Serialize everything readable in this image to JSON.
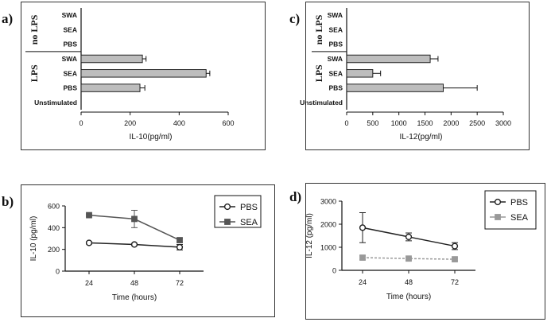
{
  "labels": {
    "a": "a)",
    "b": "b)",
    "c": "c)",
    "d": "d)"
  },
  "chart_data": [
    {
      "id": "a",
      "type": "bar",
      "orientation": "horizontal",
      "categories": [
        "SWA",
        "SEA",
        "PBS",
        "SWA",
        "SEA",
        "PBS",
        "Unstimulated"
      ],
      "groups": [
        {
          "label": "no LPS",
          "rows": [
            0,
            1,
            2
          ]
        },
        {
          "label": "LPS",
          "rows": [
            3,
            4,
            5
          ]
        }
      ],
      "values": [
        0,
        0,
        0,
        250,
        510,
        240,
        0
      ],
      "errors": [
        0,
        0,
        0,
        15,
        15,
        20,
        0
      ],
      "xlim": [
        0,
        600
      ],
      "xticks": [
        "0",
        "200",
        "400",
        "600"
      ],
      "xlabel": "IL-10(pg/ml)",
      "color": "#bdbdbd"
    },
    {
      "id": "c",
      "type": "bar",
      "orientation": "horizontal",
      "categories": [
        "SWA",
        "SEA",
        "PBS",
        "SWA",
        "SEA",
        "PBS",
        "Unstimulated"
      ],
      "groups": [
        {
          "label": "no LPS",
          "rows": [
            0,
            1,
            2
          ]
        },
        {
          "label": "LPS",
          "rows": [
            3,
            4,
            5
          ]
        }
      ],
      "values": [
        0,
        0,
        0,
        1600,
        500,
        1850,
        0
      ],
      "errors": [
        0,
        0,
        0,
        150,
        150,
        650,
        0
      ],
      "xlim": [
        0,
        3000
      ],
      "xticks": [
        "0",
        "500",
        "1000",
        "1500",
        "2000",
        "2500",
        "3000"
      ],
      "xlabel": "IL-12(pg/ml)",
      "color": "#bdbdbd"
    },
    {
      "id": "b",
      "type": "line",
      "x": [
        "24",
        "48",
        "72"
      ],
      "series": [
        {
          "name": "PBS",
          "values": [
            260,
            245,
            220
          ],
          "errors": [
            10,
            10,
            25
          ],
          "marker": "circle",
          "color": "#222222"
        },
        {
          "name": "SEA",
          "values": [
            515,
            480,
            285
          ],
          "errors": [
            10,
            80,
            20
          ],
          "marker": "square",
          "color": "#555555"
        }
      ],
      "ylim": [
        0,
        600
      ],
      "yticks": [
        "0",
        "200",
        "400",
        "600"
      ],
      "xlabel": "Time (hours)",
      "ylabel": "IL-10 (pg/ml)",
      "legend": "right"
    },
    {
      "id": "d",
      "type": "line",
      "x": [
        "24",
        "48",
        "72"
      ],
      "series": [
        {
          "name": "PBS",
          "values": [
            1850,
            1450,
            1050
          ],
          "errors": [
            650,
            170,
            150
          ],
          "marker": "circle",
          "color": "#222222"
        },
        {
          "name": "SEA",
          "values": [
            550,
            510,
            480
          ],
          "errors": [
            80,
            60,
            60
          ],
          "marker": "square",
          "color": "#999999"
        }
      ],
      "ylim": [
        0,
        3000
      ],
      "yticks": [
        "0",
        "1000",
        "2000",
        "3000"
      ],
      "xlabel": "Time (hours)",
      "ylabel": "IL-12 (pg/ml)",
      "legend": "right"
    }
  ]
}
